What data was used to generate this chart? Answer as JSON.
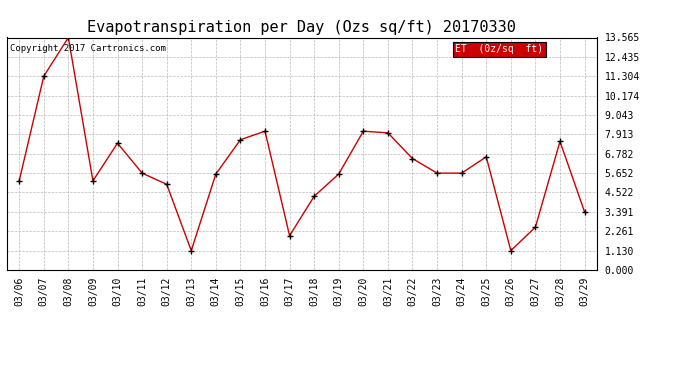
{
  "title": "Evapotranspiration per Day (Ozs sq/ft) 20170330",
  "copyright_text": "Copyright 2017 Cartronics.com",
  "legend_label": "ET  (0z/sq  ft)",
  "x_labels": [
    "03/06",
    "03/07",
    "03/08",
    "03/09",
    "03/10",
    "03/11",
    "03/12",
    "03/13",
    "03/14",
    "03/15",
    "03/16",
    "03/17",
    "03/18",
    "03/19",
    "03/20",
    "03/21",
    "03/22",
    "03/23",
    "03/24",
    "03/25",
    "03/26",
    "03/27",
    "03/28",
    "03/29"
  ],
  "y_values": [
    5.2,
    11.304,
    13.565,
    5.2,
    7.4,
    5.652,
    5.0,
    1.13,
    5.6,
    7.6,
    8.1,
    2.0,
    4.3,
    5.6,
    8.1,
    8.0,
    6.5,
    5.652,
    5.652,
    6.6,
    1.13,
    2.5,
    7.5,
    3.391
  ],
  "y_ticks": [
    0.0,
    1.13,
    2.261,
    3.391,
    4.522,
    5.652,
    6.782,
    7.913,
    9.043,
    10.174,
    11.304,
    12.435,
    13.565
  ],
  "line_color": "#cc0000",
  "marker_color": "#000000",
  "background_color": "#ffffff",
  "grid_color": "#aaaaaa",
  "legend_bg": "#cc0000",
  "legend_text_color": "#ffffff",
  "title_fontsize": 11,
  "tick_fontsize": 7,
  "copyright_fontsize": 6.5,
  "legend_fontsize": 7,
  "y_lim": [
    0.0,
    13.565
  ],
  "x_lim": [
    -0.5,
    23.5
  ]
}
